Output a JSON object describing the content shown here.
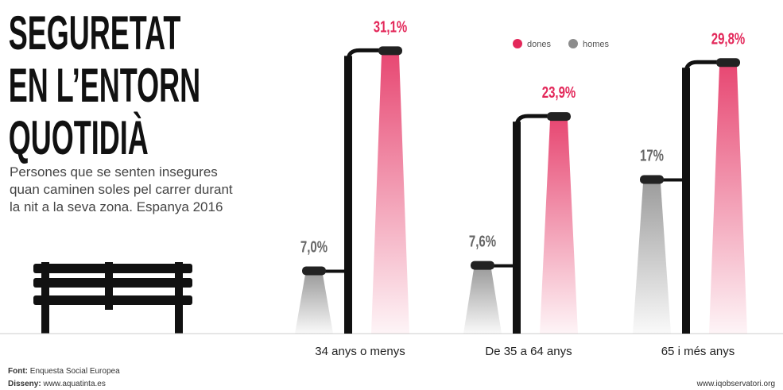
{
  "chart_data": {
    "type": "streetlamp-bar",
    "title": [
      "SEGURETAT",
      "EN L’ENTORN",
      "QUOTIDIÀ"
    ],
    "subtitle": [
      "Persones que se senten insegures",
      "quan caminen soles pel carrer durant",
      "la nit a la seva zona. Espanya 2016"
    ],
    "categories": [
      "34 anys o menys",
      "De 35 a 64 anys",
      "65 i més anys"
    ],
    "series": [
      {
        "name": "dones",
        "color": "#e3285a",
        "values": [
          31.1,
          23.9,
          29.8
        ],
        "value_labels": [
          "31,1%",
          "23,9%",
          "29,8%"
        ]
      },
      {
        "name": "homes",
        "color": "#8c8c8c",
        "values": [
          7.0,
          7.6,
          17
        ],
        "value_labels": [
          "7,0%",
          "7,6%",
          "17%"
        ]
      }
    ],
    "ylim": [
      0,
      36
    ],
    "source": {
      "label": "Font:",
      "text": "Enquesta Social Europea"
    },
    "design": {
      "label": "Disseny:",
      "text": "www.aquatinta.es"
    },
    "url": "www.iqobservatori.org"
  }
}
